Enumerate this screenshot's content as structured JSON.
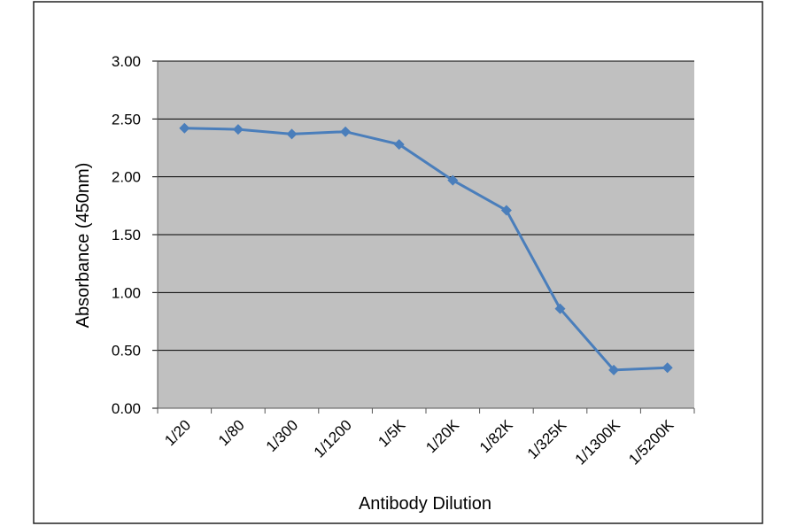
{
  "chart_data": {
    "type": "line",
    "x_label": "Antibody Dilution",
    "y_label": "Absorbance (450nm)",
    "categories": [
      "1/20",
      "1/80",
      "1/300",
      "1/1200",
      "1/5K",
      "1/20K",
      "1/82K",
      "1/325K",
      "1/1300K",
      "1/5200K"
    ],
    "values": [
      2.42,
      2.41,
      2.37,
      2.39,
      2.28,
      1.97,
      1.71,
      0.86,
      0.33,
      0.35
    ],
    "color": "#4a7ebb",
    "ylim": [
      0,
      3
    ],
    "yticks": [
      {
        "value": 0,
        "label": "0.00"
      },
      {
        "value": 0.5,
        "label": "0.50"
      },
      {
        "value": 1,
        "label": "1.00"
      },
      {
        "value": 1.5,
        "label": "1.50"
      },
      {
        "value": 2,
        "label": "2.00"
      },
      {
        "value": 2.5,
        "label": "2.50"
      },
      {
        "value": 3,
        "label": "3.00"
      }
    ],
    "grid": true
  }
}
